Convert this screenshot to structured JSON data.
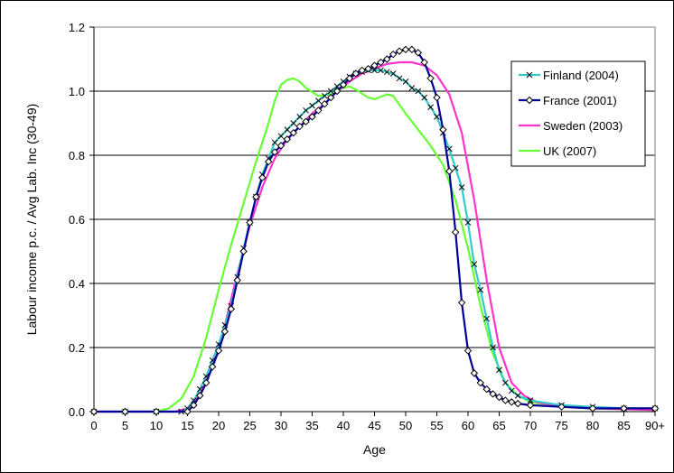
{
  "chart_data": {
    "type": "line",
    "title": "",
    "xlabel": "Age",
    "ylabel": "Labour income p.c. / Avg Lab. Inc (30-49)",
    "xlim": [
      0,
      90
    ],
    "ylim": [
      0,
      1.2
    ],
    "x_ticks": [
      0,
      5,
      10,
      15,
      20,
      25,
      30,
      35,
      40,
      45,
      50,
      55,
      60,
      65,
      70,
      75,
      80,
      85,
      90
    ],
    "x_tick_labels": [
      "0",
      "5",
      "10",
      "15",
      "20",
      "25",
      "30",
      "35",
      "40",
      "45",
      "50",
      "55",
      "60",
      "65",
      "70",
      "75",
      "80",
      "85",
      "90+"
    ],
    "y_ticks": [
      0,
      0.2,
      0.4,
      0.6,
      0.8,
      1.0,
      1.2
    ],
    "y_tick_labels": [
      "0.0",
      "0.2",
      "0.4",
      "0.6",
      "0.8",
      "1.0",
      "1.2"
    ],
    "grid": "horizontal",
    "legend_position": "right",
    "series": [
      {
        "name": "Finland (2004)",
        "color": "#33CCCC",
        "marker": "x",
        "points": [
          [
            0,
            0
          ],
          [
            5,
            0
          ],
          [
            10,
            0
          ],
          [
            14,
            0
          ],
          [
            15,
            0.01
          ],
          [
            16,
            0.035
          ],
          [
            17,
            0.07
          ],
          [
            18,
            0.11
          ],
          [
            19,
            0.16
          ],
          [
            20,
            0.21
          ],
          [
            21,
            0.27
          ],
          [
            22,
            0.33
          ],
          [
            23,
            0.42
          ],
          [
            24,
            0.51
          ],
          [
            25,
            0.59
          ],
          [
            26,
            0.67
          ],
          [
            27,
            0.74
          ],
          [
            28,
            0.79
          ],
          [
            29,
            0.84
          ],
          [
            30,
            0.86
          ],
          [
            31,
            0.88
          ],
          [
            32,
            0.9
          ],
          [
            33,
            0.92
          ],
          [
            34,
            0.94
          ],
          [
            35,
            0.955
          ],
          [
            36,
            0.97
          ],
          [
            37,
            0.985
          ],
          [
            38,
            1.0
          ],
          [
            39,
            1.015
          ],
          [
            40,
            1.03
          ],
          [
            41,
            1.045
          ],
          [
            42,
            1.055
          ],
          [
            43,
            1.06
          ],
          [
            44,
            1.065
          ],
          [
            45,
            1.065
          ],
          [
            46,
            1.065
          ],
          [
            47,
            1.06
          ],
          [
            48,
            1.055
          ],
          [
            49,
            1.04
          ],
          [
            50,
            1.03
          ],
          [
            51,
            1.01
          ],
          [
            52,
            1.0
          ],
          [
            53,
            0.98
          ],
          [
            54,
            0.95
          ],
          [
            55,
            0.92
          ],
          [
            56,
            0.87
          ],
          [
            57,
            0.82
          ],
          [
            58,
            0.76
          ],
          [
            59,
            0.7
          ],
          [
            60,
            0.59
          ],
          [
            61,
            0.46
          ],
          [
            62,
            0.38
          ],
          [
            63,
            0.29
          ],
          [
            64,
            0.2
          ],
          [
            65,
            0.13
          ],
          [
            66,
            0.09
          ],
          [
            67,
            0.065
          ],
          [
            68,
            0.05
          ],
          [
            70,
            0.035
          ],
          [
            75,
            0.02
          ],
          [
            80,
            0.015
          ],
          [
            85,
            0.01
          ],
          [
            90,
            0.01
          ]
        ]
      },
      {
        "name": "France (2001)",
        "color": "#000099",
        "marker": "diamond",
        "points": [
          [
            0,
            0
          ],
          [
            5,
            0
          ],
          [
            10,
            0
          ],
          [
            15,
            0
          ],
          [
            16,
            0.02
          ],
          [
            17,
            0.05
          ],
          [
            18,
            0.09
          ],
          [
            19,
            0.14
          ],
          [
            20,
            0.19
          ],
          [
            21,
            0.25
          ],
          [
            22,
            0.32
          ],
          [
            23,
            0.41
          ],
          [
            24,
            0.5
          ],
          [
            25,
            0.59
          ],
          [
            26,
            0.67
          ],
          [
            27,
            0.73
          ],
          [
            28,
            0.78
          ],
          [
            29,
            0.81
          ],
          [
            30,
            0.83
          ],
          [
            31,
            0.85
          ],
          [
            32,
            0.87
          ],
          [
            33,
            0.89
          ],
          [
            34,
            0.905
          ],
          [
            35,
            0.92
          ],
          [
            36,
            0.94
          ],
          [
            37,
            0.96
          ],
          [
            38,
            0.98
          ],
          [
            39,
            1.0
          ],
          [
            40,
            1.02
          ],
          [
            41,
            1.04
          ],
          [
            42,
            1.055
          ],
          [
            43,
            1.065
          ],
          [
            44,
            1.07
          ],
          [
            45,
            1.08
          ],
          [
            46,
            1.09
          ],
          [
            47,
            1.1
          ],
          [
            48,
            1.115
          ],
          [
            49,
            1.125
          ],
          [
            50,
            1.13
          ],
          [
            51,
            1.13
          ],
          [
            52,
            1.12
          ],
          [
            53,
            1.09
          ],
          [
            54,
            1.04
          ],
          [
            55,
            0.98
          ],
          [
            56,
            0.88
          ],
          [
            57,
            0.75
          ],
          [
            58,
            0.56
          ],
          [
            59,
            0.34
          ],
          [
            60,
            0.19
          ],
          [
            61,
            0.12
          ],
          [
            62,
            0.09
          ],
          [
            63,
            0.07
          ],
          [
            64,
            0.055
          ],
          [
            65,
            0.045
          ],
          [
            66,
            0.035
          ],
          [
            67,
            0.03
          ],
          [
            68,
            0.025
          ],
          [
            70,
            0.02
          ],
          [
            75,
            0.015
          ],
          [
            80,
            0.01
          ],
          [
            85,
            0.01
          ],
          [
            90,
            0.01
          ]
        ]
      },
      {
        "name": "Sweden (2003)",
        "color": "#FF33CC",
        "marker": "none",
        "points": [
          [
            0,
            0
          ],
          [
            10,
            0
          ],
          [
            13,
            0
          ],
          [
            15,
            0.01
          ],
          [
            17,
            0.05
          ],
          [
            19,
            0.14
          ],
          [
            21,
            0.27
          ],
          [
            23,
            0.43
          ],
          [
            25,
            0.58
          ],
          [
            27,
            0.7
          ],
          [
            29,
            0.79
          ],
          [
            31,
            0.85
          ],
          [
            33,
            0.89
          ],
          [
            35,
            0.93
          ],
          [
            37,
            0.96
          ],
          [
            39,
            1.0
          ],
          [
            41,
            1.03
          ],
          [
            43,
            1.055
          ],
          [
            45,
            1.07
          ],
          [
            47,
            1.085
          ],
          [
            49,
            1.09
          ],
          [
            51,
            1.09
          ],
          [
            53,
            1.08
          ],
          [
            55,
            1.05
          ],
          [
            57,
            0.99
          ],
          [
            59,
            0.87
          ],
          [
            61,
            0.66
          ],
          [
            63,
            0.41
          ],
          [
            65,
            0.2
          ],
          [
            67,
            0.09
          ],
          [
            69,
            0.05
          ],
          [
            71,
            0.03
          ],
          [
            75,
            0.015
          ],
          [
            80,
            0.01
          ],
          [
            90,
            0.005
          ]
        ]
      },
      {
        "name": "UK (2007)",
        "color": "#66FF33",
        "marker": "none",
        "points": [
          [
            0,
            0
          ],
          [
            10,
            0
          ],
          [
            12,
            0.01
          ],
          [
            14,
            0.04
          ],
          [
            16,
            0.11
          ],
          [
            18,
            0.23
          ],
          [
            20,
            0.38
          ],
          [
            22,
            0.52
          ],
          [
            24,
            0.65
          ],
          [
            26,
            0.78
          ],
          [
            28,
            0.9
          ],
          [
            29,
            0.97
          ],
          [
            30,
            1.02
          ],
          [
            31,
            1.035
          ],
          [
            32,
            1.04
          ],
          [
            33,
            1.03
          ],
          [
            34,
            1.01
          ],
          [
            36,
            0.985
          ],
          [
            38,
            0.99
          ],
          [
            40,
            1.01
          ],
          [
            41,
            1.015
          ],
          [
            42,
            1.005
          ],
          [
            44,
            0.98
          ],
          [
            45,
            0.975
          ],
          [
            47,
            0.99
          ],
          [
            48,
            0.985
          ],
          [
            50,
            0.93
          ],
          [
            52,
            0.88
          ],
          [
            54,
            0.83
          ],
          [
            56,
            0.77
          ],
          [
            58,
            0.66
          ],
          [
            60,
            0.51
          ],
          [
            62,
            0.33
          ],
          [
            64,
            0.18
          ],
          [
            66,
            0.09
          ],
          [
            68,
            0.05
          ],
          [
            70,
            0.03
          ],
          [
            75,
            0.015
          ],
          [
            80,
            0.01
          ],
          [
            90,
            0.005
          ]
        ]
      }
    ]
  }
}
